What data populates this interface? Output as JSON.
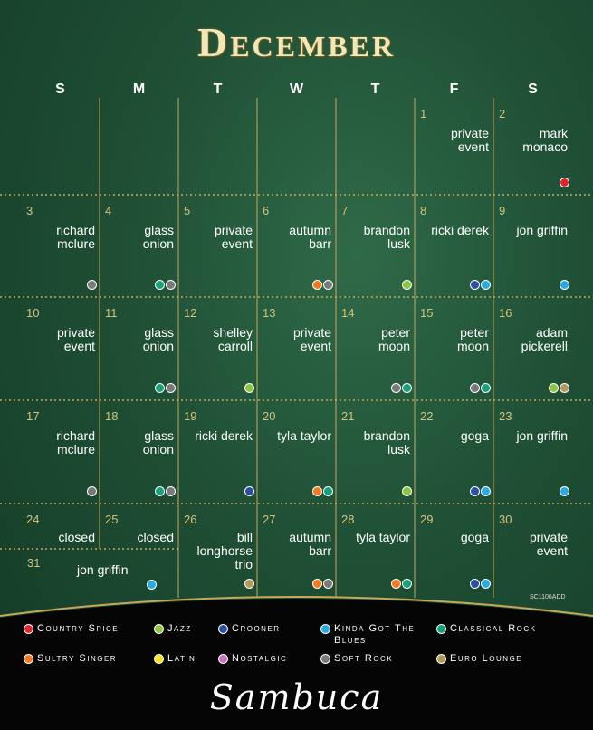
{
  "header": {
    "title": "December",
    "weekdays": [
      "S",
      "M",
      "T",
      "W",
      "T",
      "F",
      "S"
    ]
  },
  "weeks": [
    [
      null,
      null,
      null,
      null,
      null,
      {
        "date": 1,
        "lines": [
          "private",
          "event"
        ],
        "dots": []
      },
      {
        "date": 2,
        "lines": [
          "mark",
          "monaco"
        ],
        "dots": [
          "#e3262a"
        ]
      }
    ],
    [
      {
        "date": 3,
        "lines": [
          "richard",
          "mclure"
        ],
        "dots": [
          "#7a7a7a"
        ]
      },
      {
        "date": 4,
        "lines": [
          "glass",
          "onion"
        ],
        "dots": [
          "#17a07a",
          "#7a7a7a"
        ]
      },
      {
        "date": 5,
        "lines": [
          "private",
          "event"
        ],
        "dots": []
      },
      {
        "date": 6,
        "lines": [
          "autumn",
          "barr"
        ],
        "dots": [
          "#f47a20",
          "#7a7a7a"
        ]
      },
      {
        "date": 7,
        "lines": [
          "brandon",
          "lusk"
        ],
        "dots": [
          "#8cc63f"
        ]
      },
      {
        "date": 8,
        "lines": [
          "ricki derek"
        ],
        "dots": [
          "#2e4fa0",
          "#29abe2"
        ]
      },
      {
        "date": 9,
        "lines": [
          "jon griffin"
        ],
        "dots": [
          "#29abe2"
        ]
      }
    ],
    [
      {
        "date": 10,
        "lines": [
          "private",
          "event"
        ],
        "dots": []
      },
      {
        "date": 11,
        "lines": [
          "glass",
          "onion"
        ],
        "dots": [
          "#17a07a",
          "#7a7a7a"
        ]
      },
      {
        "date": 12,
        "lines": [
          "shelley",
          "carroll"
        ],
        "dots": [
          "#8cc63f"
        ]
      },
      {
        "date": 13,
        "lines": [
          "private",
          "event"
        ],
        "dots": []
      },
      {
        "date": 14,
        "lines": [
          "peter",
          "moon"
        ],
        "dots": [
          "#7a7a7a",
          "#17a07a"
        ]
      },
      {
        "date": 15,
        "lines": [
          "peter",
          "moon"
        ],
        "dots": [
          "#7a7a7a",
          "#17a07a"
        ]
      },
      {
        "date": 16,
        "lines": [
          "adam",
          "pickerell"
        ],
        "dots": [
          "#8cc63f",
          "#b39a5b"
        ]
      }
    ],
    [
      {
        "date": 17,
        "lines": [
          "richard",
          "mclure"
        ],
        "dots": [
          "#7a7a7a"
        ]
      },
      {
        "date": 18,
        "lines": [
          "glass",
          "onion"
        ],
        "dots": [
          "#17a07a",
          "#7a7a7a"
        ]
      },
      {
        "date": 19,
        "lines": [
          "ricki derek"
        ],
        "dots": [
          "#2e4fa0"
        ]
      },
      {
        "date": 20,
        "lines": [
          "tyla taylor"
        ],
        "dots": [
          "#f47a20",
          "#17a07a"
        ]
      },
      {
        "date": 21,
        "lines": [
          "brandon",
          "lusk"
        ],
        "dots": [
          "#8cc63f"
        ]
      },
      {
        "date": 22,
        "lines": [
          "goga"
        ],
        "dots": [
          "#2e4fa0",
          "#29abe2"
        ]
      },
      {
        "date": 23,
        "lines": [
          "jon griffin"
        ],
        "dots": [
          "#29abe2"
        ]
      }
    ],
    [
      {
        "date": 24,
        "lines": [
          "closed"
        ],
        "dots": []
      },
      {
        "date": 25,
        "lines": [
          "closed"
        ],
        "dots": []
      },
      {
        "date": 26,
        "lines": [
          "bill",
          "longhorse",
          "trio"
        ],
        "dots": [
          "#b39a5b"
        ]
      },
      {
        "date": 27,
        "lines": [
          "autumn",
          "barr"
        ],
        "dots": [
          "#f47a20",
          "#7a7a7a"
        ]
      },
      {
        "date": 28,
        "lines": [
          "tyla taylor"
        ],
        "dots": [
          "#f47a20",
          "#17a07a"
        ]
      },
      {
        "date": 29,
        "lines": [
          "goga"
        ],
        "dots": [
          "#2e4fa0",
          "#29abe2"
        ]
      },
      {
        "date": 30,
        "lines": [
          "private",
          "event"
        ],
        "dots": []
      }
    ],
    [
      {
        "date": 31,
        "lines": [
          "jon griffin"
        ],
        "dots": [
          "#29abe2"
        ]
      }
    ]
  ],
  "code": "SC1106ADD",
  "legend": [
    {
      "label": "Country Spice",
      "color": "#e3262a"
    },
    {
      "label": "Jazz",
      "color": "#8cc63f"
    },
    {
      "label": "Crooner",
      "color": "#2e4fa0"
    },
    {
      "label": "Kinda Got The Blues",
      "color": "#29abe2"
    },
    {
      "label": "Classical Rock",
      "color": "#17a07a"
    },
    {
      "label": "Sultry Singer",
      "color": "#f47a20"
    },
    {
      "label": "Latin",
      "color": "#f5e31a"
    },
    {
      "label": "Nostalgic",
      "color": "#c86fc1"
    },
    {
      "label": "Soft Rock",
      "color": "#7a7a7a"
    },
    {
      "label": "Euro Lounge",
      "color": "#b39a5b"
    }
  ],
  "brand": "Sambuca"
}
